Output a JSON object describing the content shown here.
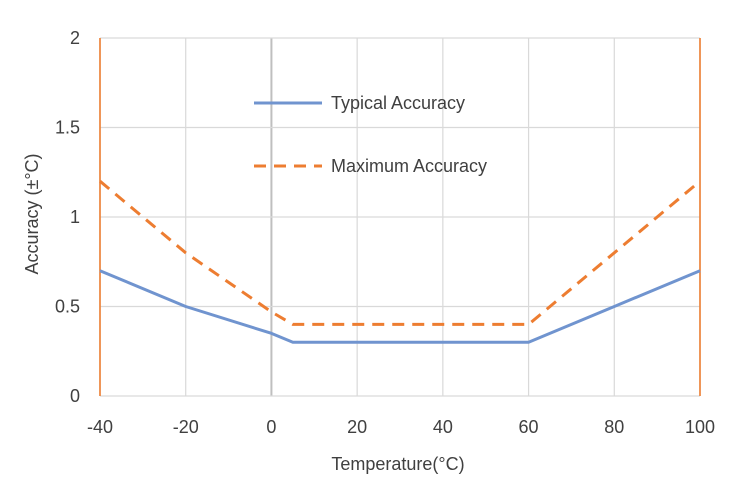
{
  "chart_data": {
    "type": "line",
    "xlabel": "Temperature(°C)",
    "ylabel": "Accuracy (±°C)",
    "xlim": [
      -40,
      100
    ],
    "ylim": [
      0,
      2
    ],
    "xticks": [
      "-40",
      "-20",
      "0",
      "20",
      "40",
      "60",
      "80",
      "100"
    ],
    "yticks": [
      "0",
      "0.5",
      "1",
      "1.5",
      "2"
    ],
    "grid": true,
    "legend_position": "top-center",
    "series": [
      {
        "name": "Typical Accuracy",
        "color": "#7094cf",
        "dash": "solid",
        "x": [
          -40,
          -20,
          0,
          5,
          60,
          80,
          100
        ],
        "y": [
          0.7,
          0.5,
          0.35,
          0.3,
          0.3,
          0.5,
          0.7
        ]
      },
      {
        "name": "Maximum Accuracy",
        "color": "#ed7d31",
        "dash": "dashed",
        "x": [
          -40,
          -20,
          0,
          5,
          60,
          80,
          100
        ],
        "y": [
          1.2,
          0.8,
          0.47,
          0.4,
          0.4,
          0.8,
          1.2
        ]
      }
    ]
  },
  "colors": {
    "grid": "#d9d9d9",
    "frame": "#ed7d31",
    "zero_line": "#bfbfbf"
  }
}
